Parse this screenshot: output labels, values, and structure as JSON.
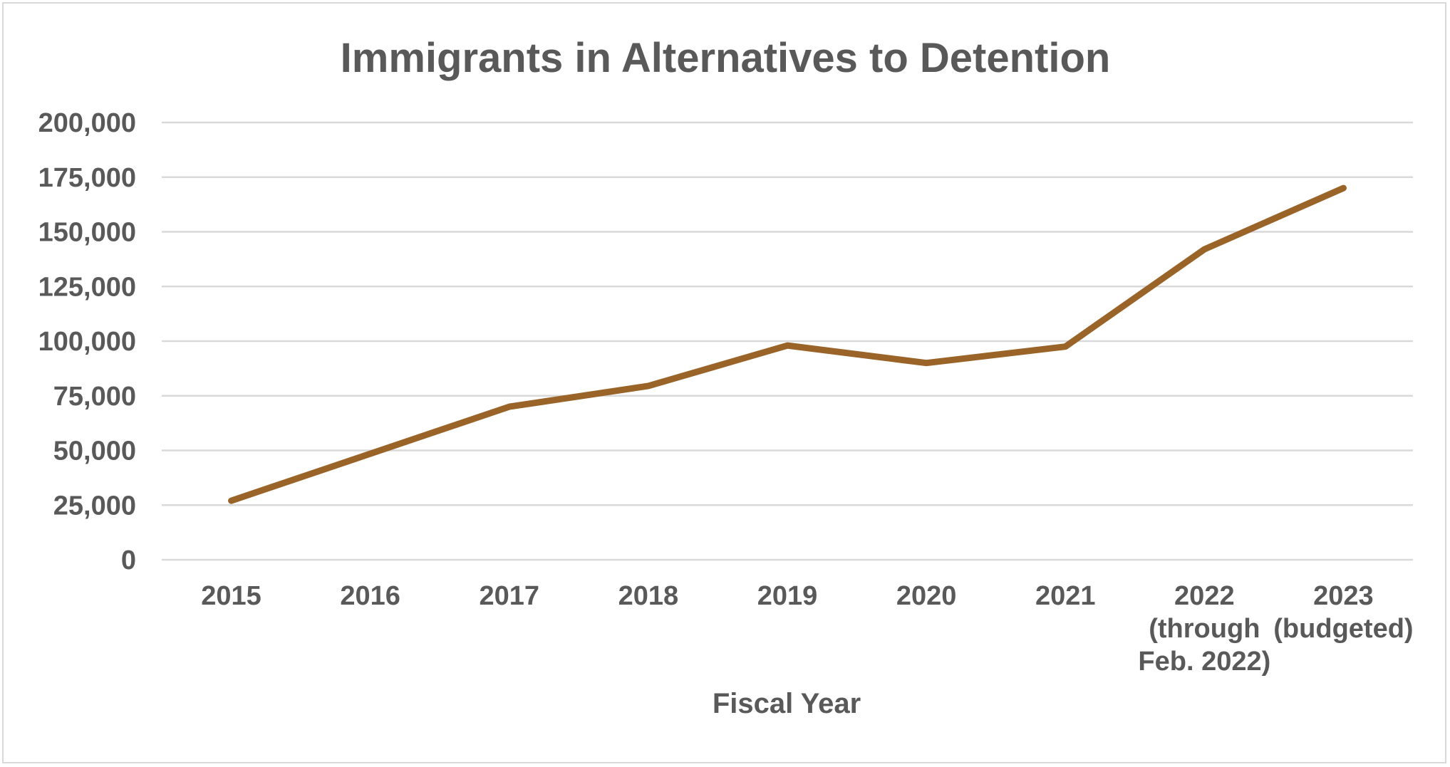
{
  "chart_data": {
    "type": "line",
    "title": "Immigrants in Alternatives to Detention",
    "xlabel": "Fiscal Year",
    "ylabel": "",
    "ylim": [
      0,
      200000
    ],
    "ytick_step": 25000,
    "ytick_labels": [
      "0",
      "25,000",
      "50,000",
      "75,000",
      "100,000",
      "125,000",
      "150,000",
      "175,000",
      "200,000"
    ],
    "categories": [
      [
        "2015"
      ],
      [
        "2016"
      ],
      [
        "2017"
      ],
      [
        "2018"
      ],
      [
        "2019"
      ],
      [
        "2020"
      ],
      [
        "2021"
      ],
      [
        "2022",
        "(through",
        "Feb. 2022)"
      ],
      [
        "2023",
        "(budgeted)"
      ]
    ],
    "series": [
      {
        "name": "Immigrants in Alternatives to Detention",
        "color": "#9a6328",
        "values": [
          27000,
          48500,
          70000,
          79500,
          98000,
          90000,
          97500,
          142000,
          170000
        ]
      }
    ],
    "grid": true,
    "legend": "none"
  }
}
